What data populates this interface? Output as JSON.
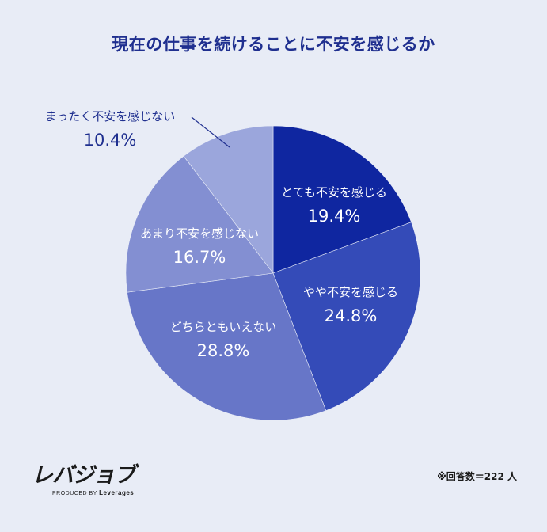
{
  "chart_data": {
    "type": "pie",
    "title": "現在の仕事を続けることに不安を感じるか",
    "start_angle": "top",
    "direction": "clockwise",
    "slices": [
      {
        "label": "とても不安を感じる",
        "value": 19.4,
        "display": "19.4%",
        "color": "#0f26a0",
        "text_color": "#ffffff"
      },
      {
        "label": "やや不安を感じる",
        "value": 24.8,
        "display": "24.8%",
        "color": "#344bb8",
        "text_color": "#ffffff"
      },
      {
        "label": "どちらともいえない",
        "value": 28.8,
        "display": "28.8%",
        "color": "#6776c8",
        "text_color": "#ffffff"
      },
      {
        "label": "あまり不安を感じない",
        "value": 16.7,
        "display": "16.7%",
        "color": "#838fd2",
        "text_color": "#ffffff"
      },
      {
        "label": "まったく不安を感じない",
        "value": 10.4,
        "display": "10.4%",
        "color": "#9ba6dc",
        "text_color": "#1f2f8f"
      }
    ]
  },
  "brand": {
    "logo": "レバジョブ",
    "sub_prefix": "PRODUCED BY",
    "sub_name": "Leverages"
  },
  "note": "※回答数＝222 人"
}
